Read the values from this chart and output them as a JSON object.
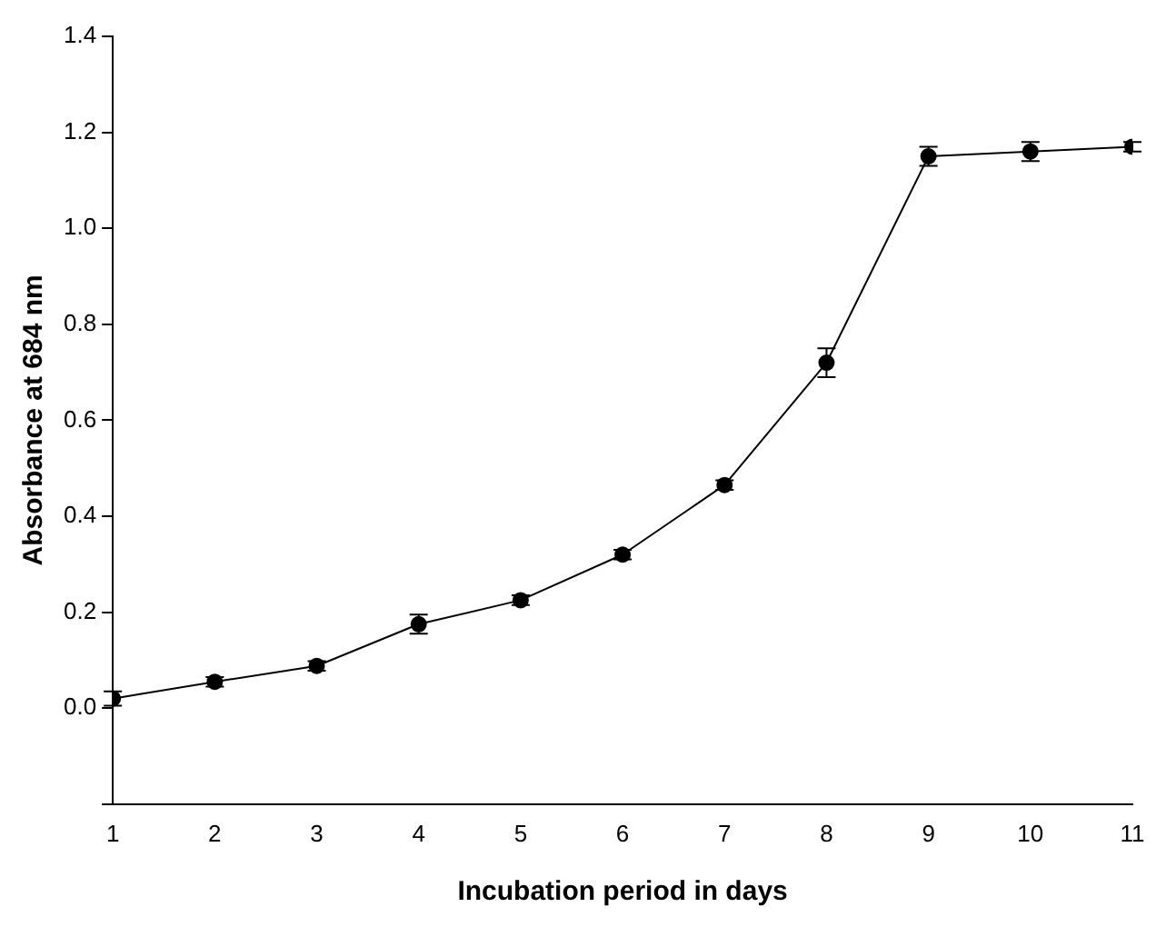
{
  "chart_data": {
    "type": "line",
    "xlabel": "Incubation period in days",
    "ylabel": "Absorbance at 684 nm",
    "x": [
      1,
      2,
      3,
      4,
      5,
      6,
      7,
      8,
      9,
      10,
      11
    ],
    "series": [
      {
        "color": "#000000",
        "values": [
          0.02,
          0.055,
          0.088,
          0.175,
          0.225,
          0.32,
          0.465,
          0.72,
          1.15,
          1.16,
          1.17
        ],
        "errors": [
          0.015,
          0.01,
          0.01,
          0.02,
          0.01,
          0.01,
          0.01,
          0.03,
          0.02,
          0.02,
          0.01
        ]
      }
    ],
    "xlim": [
      1,
      11
    ],
    "xticks": [
      1,
      2,
      3,
      4,
      5,
      6,
      7,
      8,
      9,
      10,
      11
    ],
    "ylim": [
      -0.2,
      1.4
    ],
    "yticks": [
      {
        "value": -0.2,
        "label": null
      },
      {
        "value": 0,
        "label": "0.0"
      },
      {
        "value": 0.2,
        "label": "0.2"
      },
      {
        "value": 0.4,
        "label": "0.4"
      },
      {
        "value": 0.6,
        "label": "0.6"
      },
      {
        "value": 0.8,
        "label": "0.8"
      },
      {
        "value": 1,
        "label": "1.0"
      },
      {
        "value": 1.2,
        "label": "1.2"
      },
      {
        "value": 1.4,
        "label": "1.4"
      }
    ],
    "grid": false,
    "legend": false,
    "marker": "circle",
    "line_style": "solid"
  }
}
